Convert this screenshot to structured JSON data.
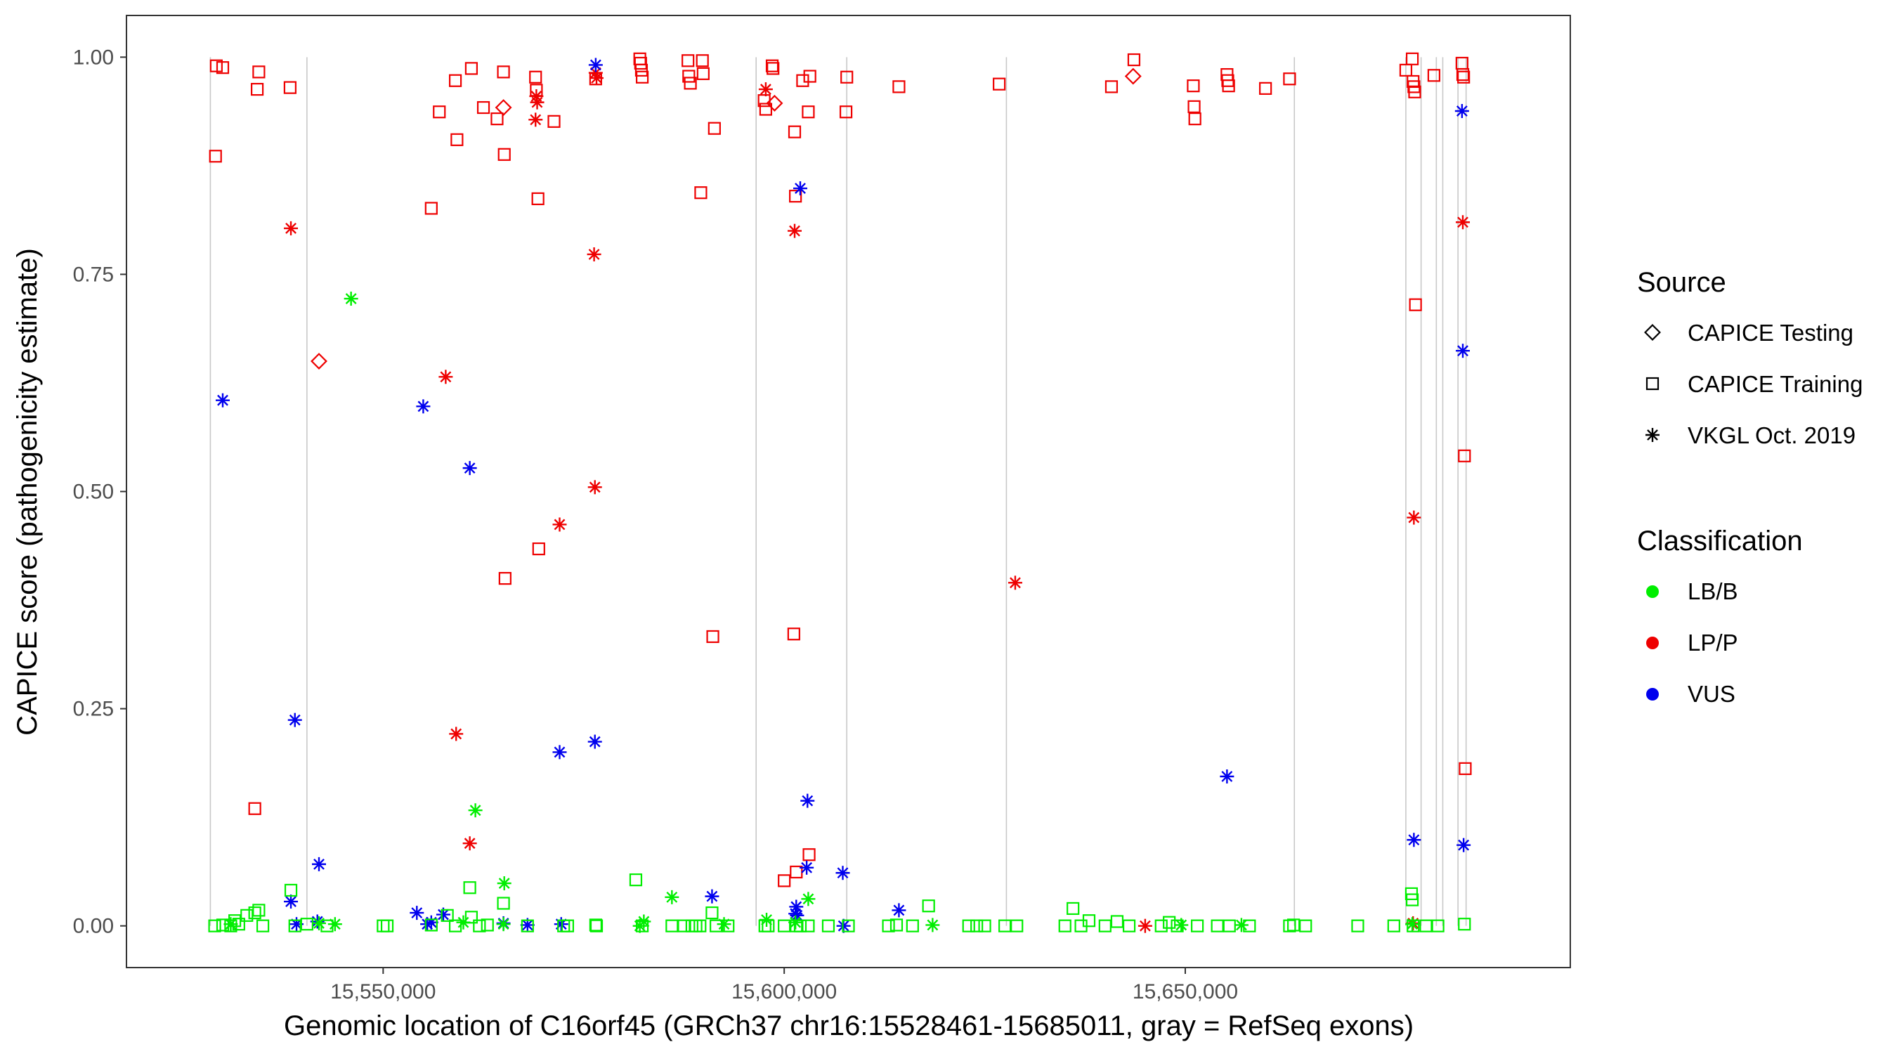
{
  "chart_data": {
    "type": "scatter",
    "xlabel": "Genomic location of C16orf45 (GRCh37 chr16:15528461-15685011, gray = RefSeq exons)",
    "ylabel": "CAPICE score (pathogenicity estimate)",
    "xlim": [
      15518000,
      15698000
    ],
    "ylim": [
      -0.048,
      1.048
    ],
    "x_ticks": [
      15550000,
      15600000,
      15650000
    ],
    "x_tick_labels": [
      "15,550,000",
      "15,600,000",
      "15,650,000"
    ],
    "y_ticks": [
      0,
      0.25,
      0.5,
      0.75,
      1.0
    ],
    "y_tick_labels": [
      "0.00",
      "0.25",
      "0.50",
      "0.75",
      "1.00"
    ],
    "grid": false,
    "exon_lines_color": "#c8c8c8",
    "exon_positions": [
      15528461,
      15540500,
      15596500,
      15607800,
      15627700,
      15663600,
      15677500,
      15679400,
      15681300,
      15682100,
      15684000,
      15685011
    ],
    "legend_position": "right",
    "legend": {
      "source": {
        "title": "Source",
        "items": [
          {
            "label": "CAPICE Testing",
            "shape": "diamond"
          },
          {
            "label": "CAPICE Training",
            "shape": "square"
          },
          {
            "label": "VKGL Oct. 2019",
            "shape": "asterisk"
          }
        ]
      },
      "classification": {
        "title": "Classification",
        "items": [
          {
            "label": "LB/B",
            "color": "#00ee00"
          },
          {
            "label": "LP/P",
            "color": "#ee0000"
          },
          {
            "label": "VUS",
            "color": "#0000ee"
          }
        ]
      }
    },
    "series": [
      {
        "name": "CAPICE Training LP/P",
        "shape": "square",
        "color": "#ee0000",
        "points": [
          [
            15529200,
            0.99
          ],
          [
            15530000,
            0.988
          ],
          [
            15529100,
            0.886
          ],
          [
            15534500,
            0.983
          ],
          [
            15534300,
            0.963
          ],
          [
            15538400,
            0.965
          ],
          [
            15534000,
            0.135
          ],
          [
            15556000,
            0.826
          ],
          [
            15557000,
            0.937
          ],
          [
            15559000,
            0.973
          ],
          [
            15559200,
            0.905
          ],
          [
            15561000,
            0.987
          ],
          [
            15562500,
            0.942
          ],
          [
            15564200,
            0.929
          ],
          [
            15565000,
            0.983
          ],
          [
            15565100,
            0.888
          ],
          [
            15565200,
            0.4
          ],
          [
            15569000,
            0.977
          ],
          [
            15569100,
            0.962
          ],
          [
            15569300,
            0.837
          ],
          [
            15569400,
            0.434
          ],
          [
            15571300,
            0.926
          ],
          [
            15576500,
            0.975
          ],
          [
            15582000,
            0.998
          ],
          [
            15582100,
            0.993
          ],
          [
            15582200,
            0.985
          ],
          [
            15582300,
            0.977
          ],
          [
            15588000,
            0.996
          ],
          [
            15588100,
            0.978
          ],
          [
            15588300,
            0.97
          ],
          [
            15589800,
            0.996
          ],
          [
            15589900,
            0.981
          ],
          [
            15589600,
            0.844
          ],
          [
            15591300,
            0.918
          ],
          [
            15591100,
            0.333
          ],
          [
            15597500,
            0.95
          ],
          [
            15597700,
            0.94
          ],
          [
            15598500,
            0.99
          ],
          [
            15598600,
            0.987
          ],
          [
            15600000,
            0.052
          ],
          [
            15601300,
            0.914
          ],
          [
            15601400,
            0.84
          ],
          [
            15601200,
            0.336
          ],
          [
            15601500,
            0.062
          ],
          [
            15602300,
            0.973
          ],
          [
            15603200,
            0.978
          ],
          [
            15603000,
            0.937
          ],
          [
            15603100,
            0.082
          ],
          [
            15607800,
            0.977
          ],
          [
            15607700,
            0.937
          ],
          [
            15614300,
            0.966
          ],
          [
            15626800,
            0.969
          ],
          [
            15640800,
            0.966
          ],
          [
            15643600,
            0.997
          ],
          [
            15651000,
            0.967
          ],
          [
            15651100,
            0.943
          ],
          [
            15651200,
            0.929
          ],
          [
            15655200,
            0.98
          ],
          [
            15655300,
            0.973
          ],
          [
            15655400,
            0.967
          ],
          [
            15660000,
            0.964
          ],
          [
            15663000,
            0.975
          ],
          [
            15677500,
            0.985
          ],
          [
            15678300,
            0.998
          ],
          [
            15678400,
            0.972
          ],
          [
            15678500,
            0.966
          ],
          [
            15678600,
            0.96
          ],
          [
            15678700,
            0.715
          ],
          [
            15681000,
            0.979
          ],
          [
            15684500,
            0.993
          ],
          [
            15684600,
            0.98
          ],
          [
            15684700,
            0.977
          ],
          [
            15684800,
            0.541
          ],
          [
            15684900,
            0.181
          ]
        ]
      },
      {
        "name": "CAPICE Testing LP/P",
        "shape": "diamond",
        "color": "#ee0000",
        "points": [
          [
            15542000,
            0.65
          ],
          [
            15565000,
            0.942
          ],
          [
            15598800,
            0.947
          ],
          [
            15643500,
            0.978
          ]
        ]
      },
      {
        "name": "VKGL Oct. 2019 LP/P",
        "shape": "asterisk",
        "color": "#ee0000",
        "points": [
          [
            15538500,
            0.803
          ],
          [
            15557800,
            0.632
          ],
          [
            15559100,
            0.221
          ],
          [
            15560800,
            0.095
          ],
          [
            15569100,
            0.955
          ],
          [
            15569200,
            0.948
          ],
          [
            15569000,
            0.928
          ],
          [
            15572000,
            0.462
          ],
          [
            15576500,
            0.982
          ],
          [
            15576600,
            0.976
          ],
          [
            15576300,
            0.773
          ],
          [
            15576400,
            0.505
          ],
          [
            15597700,
            0.963
          ],
          [
            15601300,
            0.8
          ],
          [
            15628800,
            0.395
          ],
          [
            15645000,
            0.0
          ],
          [
            15678500,
            0.47
          ],
          [
            15678400,
            0.003
          ],
          [
            15684600,
            0.81
          ]
        ]
      },
      {
        "name": "VKGL Oct. 2019 VUS",
        "shape": "asterisk",
        "color": "#0000ee",
        "points": [
          [
            15530000,
            0.605
          ],
          [
            15539000,
            0.237
          ],
          [
            15538500,
            0.028
          ],
          [
            15539200,
            0.002
          ],
          [
            15542000,
            0.071
          ],
          [
            15541800,
            0.005
          ],
          [
            15555000,
            0.598
          ],
          [
            15554200,
            0.015
          ],
          [
            15555500,
            0.002
          ],
          [
            15556000,
            0.004
          ],
          [
            15557500,
            0.013
          ],
          [
            15560800,
            0.527
          ],
          [
            15565000,
            0.003
          ],
          [
            15568000,
            0.001
          ],
          [
            15572000,
            0.2
          ],
          [
            15572200,
            0.002
          ],
          [
            15576500,
            0.991
          ],
          [
            15576400,
            0.212
          ],
          [
            15591000,
            0.034
          ],
          [
            15601500,
            0.022
          ],
          [
            15601400,
            0.014
          ],
          [
            15601600,
            0.012
          ],
          [
            15602000,
            0.849
          ],
          [
            15602900,
            0.144
          ],
          [
            15602800,
            0.067
          ],
          [
            15607300,
            0.061
          ],
          [
            15607400,
            0.0
          ],
          [
            15614300,
            0.018
          ],
          [
            15655200,
            0.172
          ],
          [
            15678500,
            0.099
          ],
          [
            15684500,
            0.938
          ],
          [
            15684600,
            0.662
          ],
          [
            15684700,
            0.093
          ]
        ]
      },
      {
        "name": "CAPICE Training LB/B",
        "shape": "square",
        "color": "#00ee00",
        "points": [
          [
            15529000,
            0.0
          ],
          [
            15530000,
            0.001
          ],
          [
            15531000,
            0.0
          ],
          [
            15532000,
            0.002
          ],
          [
            15533000,
            0.012
          ],
          [
            15534000,
            0.015
          ],
          [
            15534500,
            0.018
          ],
          [
            15531500,
            0.006
          ],
          [
            15535000,
            0.0
          ],
          [
            15538500,
            0.041
          ],
          [
            15539000,
            0.0
          ],
          [
            15540500,
            0.002
          ],
          [
            15543000,
            0.0
          ],
          [
            15550000,
            0.0
          ],
          [
            15550500,
            0.0
          ],
          [
            15556000,
            0.001
          ],
          [
            15558000,
            0.012
          ],
          [
            15559000,
            0.0
          ],
          [
            15560800,
            0.044
          ],
          [
            15561000,
            0.01
          ],
          [
            15562000,
            0.0
          ],
          [
            15563000,
            0.001
          ],
          [
            15565000,
            0.026
          ],
          [
            15568000,
            0.0
          ],
          [
            15572500,
            0.0
          ],
          [
            15573000,
            0.0
          ],
          [
            15576500,
            0.001
          ],
          [
            15576600,
            0.0
          ],
          [
            15581500,
            0.053
          ],
          [
            15582300,
            0.0
          ],
          [
            15586000,
            0.0
          ],
          [
            15587500,
            0.0
          ],
          [
            15588500,
            0.0
          ],
          [
            15589000,
            0.0
          ],
          [
            15589500,
            0.0
          ],
          [
            15591000,
            0.015
          ],
          [
            15591500,
            0.0
          ],
          [
            15593000,
            0.0
          ],
          [
            15597600,
            0.0
          ],
          [
            15598000,
            0.0
          ],
          [
            15600000,
            0.0
          ],
          [
            15601500,
            0.0
          ],
          [
            15602000,
            0.0
          ],
          [
            15603000,
            0.0
          ],
          [
            15605500,
            0.0
          ],
          [
            15608000,
            0.0
          ],
          [
            15613000,
            0.0
          ],
          [
            15614000,
            0.001
          ],
          [
            15616000,
            0.0
          ],
          [
            15618000,
            0.023
          ],
          [
            15623000,
            0.0
          ],
          [
            15624000,
            0.0
          ],
          [
            15625000,
            0.0
          ],
          [
            15627500,
            0.0
          ],
          [
            15629000,
            0.0
          ],
          [
            15635000,
            0.0
          ],
          [
            15636000,
            0.02
          ],
          [
            15637000,
            0.0
          ],
          [
            15638000,
            0.006
          ],
          [
            15640000,
            0.0
          ],
          [
            15641500,
            0.005
          ],
          [
            15643000,
            0.0
          ],
          [
            15647000,
            0.0
          ],
          [
            15648000,
            0.004
          ],
          [
            15649000,
            0.0
          ],
          [
            15651500,
            0.0
          ],
          [
            15654000,
            0.0
          ],
          [
            15655500,
            0.0
          ],
          [
            15658000,
            0.0
          ],
          [
            15663000,
            0.0
          ],
          [
            15663500,
            0.001
          ],
          [
            15665000,
            0.0
          ],
          [
            15671500,
            0.0
          ],
          [
            15676000,
            0.0
          ],
          [
            15678200,
            0.037
          ],
          [
            15678300,
            0.03
          ],
          [
            15678400,
            0.0
          ],
          [
            15680000,
            0.0
          ],
          [
            15681500,
            0.0
          ],
          [
            15684800,
            0.002
          ]
        ]
      },
      {
        "name": "VKGL Oct. 2019 LB/B",
        "shape": "asterisk",
        "color": "#00ee00",
        "points": [
          [
            15546000,
            0.722
          ],
          [
            15561500,
            0.133
          ],
          [
            15565100,
            0.049
          ],
          [
            15586000,
            0.033
          ],
          [
            15582500,
            0.005
          ],
          [
            15582000,
            0.0
          ],
          [
            15597800,
            0.007
          ],
          [
            15601400,
            0.004
          ],
          [
            15603000,
            0.031
          ],
          [
            15531000,
            0.002
          ],
          [
            15542000,
            0.003
          ],
          [
            15544000,
            0.002
          ],
          [
            15560000,
            0.004
          ],
          [
            15565000,
            0.002
          ],
          [
            15592500,
            0.002
          ],
          [
            15618500,
            0.001
          ],
          [
            15649500,
            0.001
          ],
          [
            15657000,
            0.001
          ],
          [
            15678300,
            0.002
          ]
        ]
      }
    ]
  }
}
